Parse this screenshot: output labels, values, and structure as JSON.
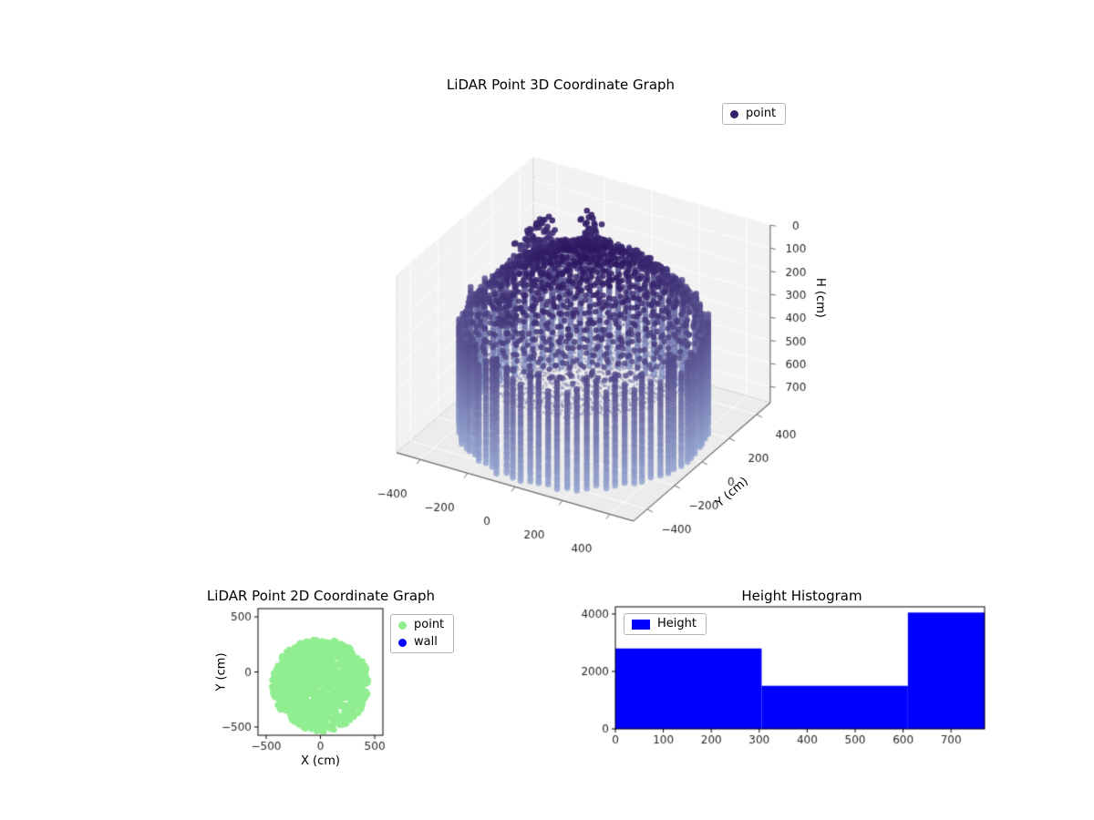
{
  "figure": {
    "background": "#ffffff"
  },
  "chart_data": [
    {
      "id": "lidar-3d",
      "type": "scatter",
      "projection": "3d",
      "title": "LiDAR Point 3D Coordinate Graph",
      "legend": {
        "position": "upper right",
        "entries": [
          {
            "label": "point",
            "color": "#32226e"
          }
        ]
      },
      "axes": {
        "x": {
          "lim": [
            -500,
            500
          ],
          "ticks": [
            -400,
            -200,
            0,
            200,
            400
          ]
        },
        "y": {
          "label": "Y (cm)",
          "lim": [
            -500,
            500
          ],
          "ticks": [
            -400,
            -200,
            0,
            200,
            400
          ]
        },
        "h": {
          "label": "H (cm)",
          "lim": [
            0,
            770
          ],
          "ticks": [
            0,
            100,
            200,
            300,
            400,
            500,
            600,
            700
          ],
          "inverted": true
        }
      },
      "view": {
        "elev": 30,
        "azim": -60
      },
      "colormap": {
        "h_low_color": "#2b145f",
        "h_high_color": "#94a4d0"
      },
      "point_cloud": {
        "shape": "cylindrical room scan colored by height",
        "wall": {
          "radius_cm": 455,
          "columns": 80,
          "h_top_cm": 320,
          "h_bottom_cm": 770
        },
        "ceiling_dome": {
          "radius_cm": 450,
          "h_center_cm": 30,
          "h_edge_cm": 330
        },
        "floor_rings": {
          "r_min_cm": 25,
          "r_max_cm": 400,
          "h_cm": 480
        },
        "clusters": {
          "count": 6,
          "angle_deg_range": [
            110,
            200
          ],
          "radius_cm_range": [
            200,
            430
          ],
          "h_cm_range": [
            120,
            320
          ]
        }
      }
    },
    {
      "id": "lidar-2d",
      "type": "scatter",
      "title": "LiDAR Point 2D Coordinate Graph",
      "xlabel": "X (cm)",
      "ylabel": "Y (cm)",
      "legend": {
        "position": "outside right",
        "entries": [
          {
            "label": "point",
            "color": "#90ee90"
          },
          {
            "label": "wall",
            "color": "#0000ff"
          }
        ]
      },
      "axes": {
        "x": {
          "lim": [
            -575,
            575
          ],
          "ticks": [
            -500,
            0,
            500
          ]
        },
        "y": {
          "lim": [
            -575,
            575
          ],
          "ticks": [
            -500,
            0,
            500
          ]
        }
      },
      "blob": {
        "center_cm": [
          0,
          -95
        ],
        "radius_cm": 450,
        "top_flatten": 0.88,
        "color": "#90ee90"
      }
    },
    {
      "id": "height-histogram",
      "type": "bar",
      "title": "Height Histogram",
      "legend": {
        "position": "upper left",
        "entries": [
          {
            "label": "Height",
            "color": "#0000ff"
          }
        ]
      },
      "bar_color": "#0000ff",
      "bin_edges": [
        0,
        305,
        610,
        770
      ],
      "counts": [
        2800,
        1500,
        4050
      ],
      "axes": {
        "x": {
          "lim": [
            0,
            770
          ],
          "ticks": [
            0,
            100,
            200,
            300,
            400,
            500,
            600,
            700
          ]
        },
        "y": {
          "lim": [
            0,
            4250
          ],
          "ticks": [
            0,
            2000,
            4000
          ]
        }
      }
    }
  ]
}
